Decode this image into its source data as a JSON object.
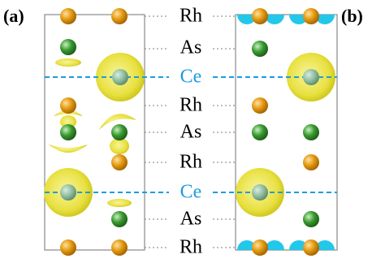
{
  "panels": [
    {
      "label": "(a)"
    },
    {
      "label": "(b)"
    }
  ],
  "layers": [
    "Rh",
    "As",
    "Ce",
    "Rh",
    "As",
    "Rh",
    "Ce",
    "As",
    "Rh"
  ]
}
